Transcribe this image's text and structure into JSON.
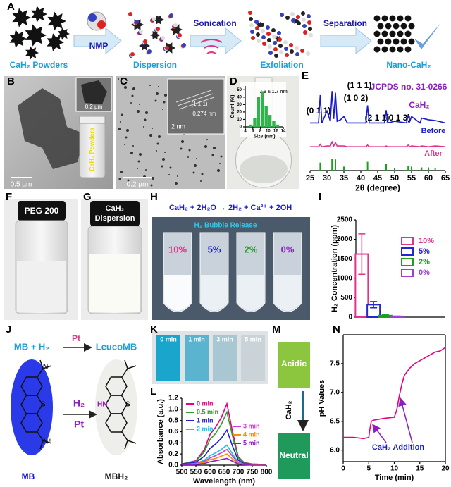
{
  "panel_letters": [
    "A",
    "B",
    "C",
    "D",
    "E",
    "F",
    "G",
    "H",
    "I",
    "J",
    "K",
    "L",
    "M",
    "N"
  ],
  "panel_a": {
    "steps": [
      "CaH₂ Powders",
      "Dispersion",
      "Exfoliation",
      "Nano-CaH₂"
    ],
    "arrows": [
      "NMP",
      "Sonication",
      "Separation"
    ]
  },
  "panel_b": {
    "scale_main": "0.5 µm",
    "scale_inset": "0.2 µm",
    "vial_label": "CaH₂ Powders"
  },
  "panel_c": {
    "scale_main": "0.2 µm",
    "scale_inset": "2 nm",
    "plane": "(1 1 1)",
    "spacing": "0.274 nm"
  },
  "panel_f": {
    "label": "PEG 200"
  },
  "panel_g": {
    "label_lines": [
      "CaH₂",
      "Dispersion"
    ]
  },
  "panel_h": {
    "equation": "CaH₂ + 2H₂O → 2H₂ + Ca²⁺ + 2OH⁻",
    "caption": "H₂ Bubble Release",
    "tubes": [
      "10%",
      "5%",
      "2%",
      "0%"
    ]
  },
  "panel_j": {
    "reactants": "MB + H₂",
    "catalyst": "Pt",
    "product": "LeucoMB",
    "arrow_top": "H₂",
    "arrow_bottom": "Pt",
    "left_name": "MB",
    "right_name": "MBH₂",
    "left_atoms": [
      "N",
      "S",
      "N⁺"
    ],
    "right_atoms": [
      "HN",
      "S"
    ]
  },
  "panel_k": {
    "times": [
      "0 min",
      "1 min",
      "3 min",
      "5 min"
    ]
  },
  "panel_m": {
    "top": "Acidic",
    "arrow": "CaH₂",
    "bottom": "Neutral"
  },
  "chart_data": [
    {
      "type": "histogram",
      "xlabel": "Size (nm)",
      "ylabel": "Count (%)",
      "annotations": [
        "7.9 ± 1.7 nm"
      ],
      "bins": [
        5,
        6,
        7,
        8,
        9,
        10,
        11,
        12,
        13
      ],
      "values": [
        3,
        12,
        40,
        48,
        28,
        16,
        8,
        3
      ],
      "color": "#2fb34a",
      "xlim": [
        4,
        14
      ],
      "xticks": [
        4,
        6,
        8,
        10,
        12,
        14
      ],
      "ylim": [
        0,
        55
      ],
      "yticks": [
        0,
        10,
        20,
        30,
        40,
        50
      ]
    },
    {
      "type": "line",
      "xlabel": "2θ (degree)",
      "annotations": [
        "(0 1 1)",
        "(1 0 2)",
        "(1 1 1)",
        "(2 1 1)",
        "(0 1 3)",
        "JCPDS no. 31-0266",
        "CaH₂"
      ],
      "x": [
        25,
        27.5,
        28,
        28.5,
        30,
        31,
        31.5,
        32,
        32.5,
        33,
        34,
        35,
        36,
        41.5,
        42,
        42.5,
        47,
        47.5,
        48,
        50,
        53.5,
        54,
        54.5,
        55,
        57.5,
        58,
        60,
        62,
        65
      ],
      "series": [
        {
          "name": "Before",
          "color": "#1a1ad0",
          "values": [
            60,
            60,
            95,
            60,
            75,
            62,
            100,
            65,
            98,
            62,
            64,
            68,
            60,
            60,
            82,
            60,
            60,
            76,
            60,
            62,
            60,
            70,
            62,
            68,
            60,
            66,
            64,
            63,
            60
          ]
        },
        {
          "name": "After",
          "color": "#e0338a",
          "values": [
            30,
            30,
            33,
            30,
            31,
            31,
            36,
            31,
            35,
            31,
            31,
            31,
            30,
            30,
            32,
            30,
            30,
            31,
            30,
            30,
            30,
            32,
            30,
            31,
            30,
            31,
            30,
            31,
            30
          ]
        }
      ],
      "reference": {
        "color": "#1ea01e",
        "x": [
          28,
          31.5,
          32.5,
          35,
          42,
          47.5,
          50,
          54,
          55,
          58,
          60,
          62
        ],
        "values": [
          10,
          15,
          14,
          5,
          11,
          8,
          3,
          6,
          5,
          4,
          4,
          3
        ]
      },
      "xlim": [
        25,
        65
      ],
      "xticks": [
        25,
        30,
        35,
        40,
        45,
        50,
        55,
        60,
        65
      ],
      "ylim": [
        0,
        110
      ]
    },
    {
      "type": "bar",
      "ylabel": "H₂ Concentration (ppm)",
      "series": [
        {
          "name": "10%",
          "color": "#e0338a",
          "values": [
            1620
          ],
          "errors": [
            520
          ]
        },
        {
          "name": "5%",
          "color": "#2626d0",
          "values": [
            320
          ],
          "errors": [
            80
          ]
        },
        {
          "name": "2%",
          "color": "#1ea01e",
          "values": [
            40
          ],
          "errors": [
            20
          ]
        },
        {
          "name": "0%",
          "color": "#a040d0",
          "values": [
            20
          ],
          "errors": [
            8
          ]
        }
      ],
      "ylim": [
        0,
        2500
      ],
      "yticks": [
        0,
        500,
        1000,
        1500,
        2000,
        2500
      ]
    },
    {
      "type": "line",
      "xlabel": "Wavelength (nm)",
      "ylabel": "Absorbance (a.u.)",
      "x": [
        500,
        550,
        580,
        600,
        620,
        640,
        660,
        680,
        700,
        720,
        750,
        800
      ],
      "series": [
        {
          "name": "0 min",
          "color": "#e4007f",
          "values": [
            0.02,
            0.08,
            0.28,
            0.55,
            0.68,
            0.85,
            1.1,
            0.6,
            0.15,
            0.05,
            0.02,
            0.01
          ]
        },
        {
          "name": "0.5 min",
          "color": "#2ca02c",
          "values": [
            0.02,
            0.07,
            0.24,
            0.46,
            0.57,
            0.73,
            0.95,
            0.52,
            0.13,
            0.04,
            0.02,
            0.01
          ]
        },
        {
          "name": "1 min",
          "color": "#1f1fd0",
          "values": [
            0.02,
            0.05,
            0.16,
            0.3,
            0.38,
            0.48,
            0.63,
            0.34,
            0.09,
            0.03,
            0.01,
            0.01
          ]
        },
        {
          "name": "2 min",
          "color": "#18c5e0",
          "values": [
            0.01,
            0.03,
            0.09,
            0.17,
            0.22,
            0.28,
            0.36,
            0.2,
            0.05,
            0.02,
            0.01,
            0.01
          ]
        },
        {
          "name": "3 min",
          "color": "#d03ad6",
          "values": [
            0.01,
            0.03,
            0.07,
            0.13,
            0.17,
            0.22,
            0.28,
            0.16,
            0.04,
            0.02,
            0.01,
            0
          ]
        },
        {
          "name": "4 min",
          "color": "#ff8c00",
          "values": [
            0.01,
            0.02,
            0.05,
            0.1,
            0.12,
            0.16,
            0.2,
            0.11,
            0.03,
            0.01,
            0.01,
            0
          ]
        },
        {
          "name": "5 min",
          "color": "#8b1fc0",
          "values": [
            0.01,
            0.01,
            0.03,
            0.06,
            0.08,
            0.1,
            0.12,
            0.07,
            0.02,
            0.01,
            0,
            0
          ]
        }
      ],
      "xlim": [
        500,
        800
      ],
      "xticks": [
        500,
        550,
        600,
        650,
        700,
        750,
        800
      ],
      "ylim": [
        0,
        1.2
      ],
      "yticks": [
        {
          "value": 0,
          "label": "0.0"
        },
        0.2,
        0.4,
        0.6,
        0.8,
        {
          "value": 1,
          "label": "1.0"
        },
        1.2
      ]
    },
    {
      "type": "line",
      "xlabel": "Time (min)",
      "ylabel": "pH Values",
      "annotations": [
        "CaH₂ Addition"
      ],
      "frame": true,
      "x": [
        0,
        2,
        4,
        5,
        5.2,
        5.5,
        6,
        8,
        10,
        10.5,
        11,
        11.5,
        12,
        13,
        14,
        15,
        16,
        17,
        18,
        19,
        20
      ],
      "series": [
        {
          "name": null,
          "color": "#e4007f",
          "values": [
            6.22,
            6.22,
            6.2,
            6.22,
            6.35,
            6.5,
            6.52,
            6.55,
            6.57,
            6.7,
            6.95,
            7.15,
            7.3,
            7.42,
            7.5,
            7.55,
            7.6,
            7.65,
            7.7,
            7.72,
            7.78
          ]
        }
      ],
      "xlim": [
        0,
        20
      ],
      "xticks": [
        0,
        5,
        10,
        15,
        20
      ],
      "ylim": [
        5.8,
        8.0
      ],
      "yticks": [
        {
          "value": 6,
          "label": "6.0"
        },
        6.5,
        {
          "value": 7,
          "label": "7.0"
        },
        7.5
      ]
    }
  ]
}
